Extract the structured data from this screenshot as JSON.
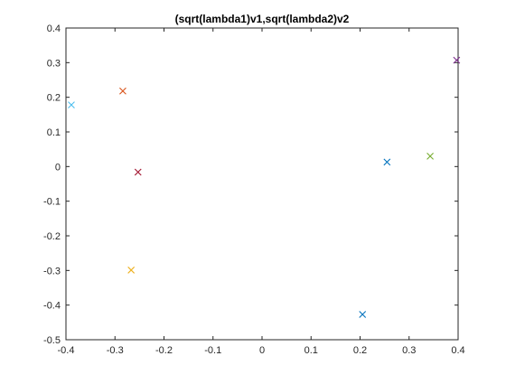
{
  "chart_data": {
    "type": "scatter",
    "title": "(sqrt(lambda1)v1,sqrt(lambda2)v2",
    "xlabel": "",
    "ylabel": "",
    "xlim": [
      -0.4,
      0.4
    ],
    "ylim": [
      -0.5,
      0.4
    ],
    "xticks": [
      -0.4,
      -0.3,
      -0.2,
      -0.1,
      0,
      0.1,
      0.2,
      0.3,
      0.4
    ],
    "xtick_labels": [
      "-0.4",
      "-0.3",
      "-0.2",
      "-0.1",
      "0",
      "0.1",
      "0.2",
      "0.3",
      "0.4"
    ],
    "yticks": [
      -0.5,
      -0.4,
      -0.3,
      -0.2,
      -0.1,
      0,
      0.1,
      0.2,
      0.3,
      0.4
    ],
    "ytick_labels": [
      "-0.5",
      "-0.4",
      "-0.3",
      "-0.2",
      "-0.1",
      "0",
      "0.1",
      "0.2",
      "0.3",
      "0.4"
    ],
    "grid": false,
    "marker": "x",
    "points": [
      {
        "x": 0.255,
        "y": 0.013,
        "color": "#0072BD"
      },
      {
        "x": -0.284,
        "y": 0.218,
        "color": "#D95319"
      },
      {
        "x": -0.267,
        "y": -0.299,
        "color": "#EDB120"
      },
      {
        "x": 0.397,
        "y": 0.307,
        "color": "#7E2F8E"
      },
      {
        "x": 0.343,
        "y": 0.03,
        "color": "#77AC30"
      },
      {
        "x": -0.389,
        "y": 0.178,
        "color": "#4DBEEE"
      },
      {
        "x": -0.253,
        "y": -0.016,
        "color": "#A2142F"
      },
      {
        "x": 0.205,
        "y": -0.427,
        "color": "#0072BD"
      }
    ]
  }
}
